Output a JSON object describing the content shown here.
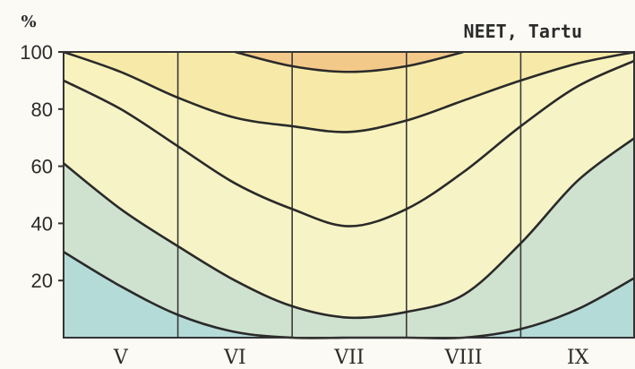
{
  "chart_data": {
    "type": "area",
    "title": "NEET, Tartu",
    "ylabel_unit": "%",
    "ylim": [
      0,
      100
    ],
    "yticks": [
      20,
      40,
      60,
      80,
      100
    ],
    "xlabels": [
      "V",
      "VI",
      "VII",
      "VIII",
      "IX"
    ],
    "grid": "vertical month boundaries",
    "x": [
      0,
      0.5,
      1,
      1.5,
      2,
      2.5,
      3,
      3.5,
      4,
      4.5,
      5
    ],
    "series": [
      {
        "values": [
          30,
          18,
          8,
          2,
          0,
          0,
          0,
          0,
          3,
          10,
          21
        ]
      },
      {
        "values": [
          61,
          45,
          32,
          20,
          11,
          7,
          9,
          15,
          33,
          55,
          70
        ]
      },
      {
        "values": [
          90,
          80,
          67,
          54,
          45,
          39,
          45,
          58,
          74,
          88,
          97
        ]
      },
      {
        "values": [
          100,
          93,
          84,
          77,
          74,
          72,
          76,
          83,
          90,
          96,
          100
        ]
      },
      {
        "values": [
          null,
          null,
          null,
          100,
          95,
          93,
          95,
          100,
          null,
          null,
          null
        ]
      }
    ],
    "band_colors": [
      "#b5dbd8",
      "#cfe2cf",
      "#f6f3c6",
      "#f8f3be",
      "#f7eaa8",
      "#f3c98a"
    ]
  }
}
